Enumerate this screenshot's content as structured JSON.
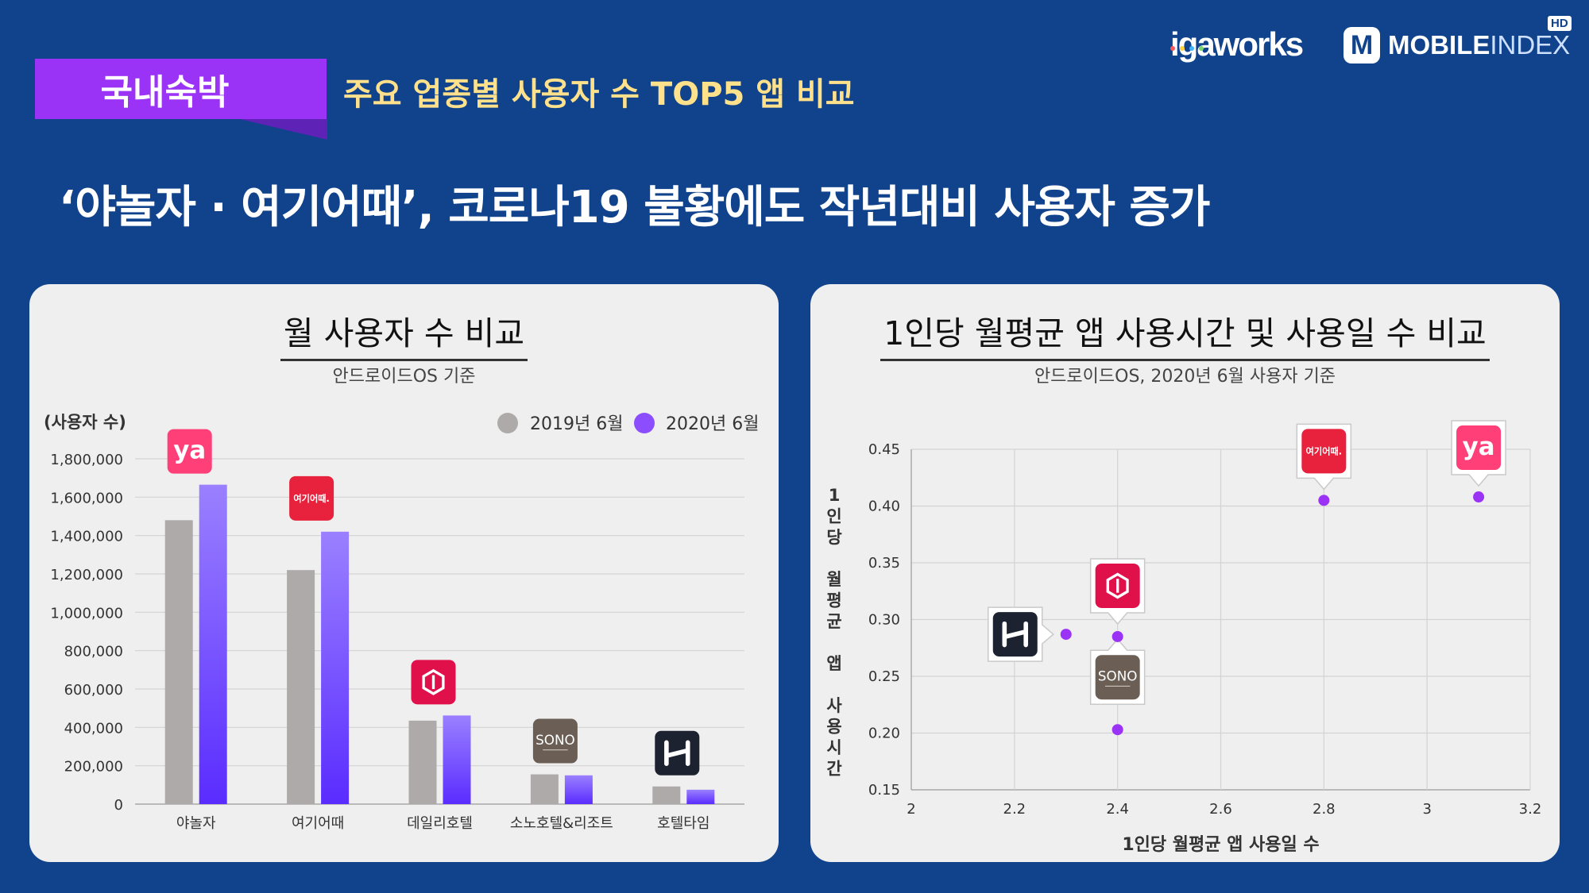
{
  "header": {
    "category": "국내숙박",
    "subtitle": "주요 업종별 사용자 수 TOP5 앱 비교",
    "headline": "‘야놀자 · 여기어때’, 코로나19 불황에도 작년대비 사용자 증가",
    "logo_igaworks": "igaworks",
    "logo_mobileindex_bold": "MOBILE",
    "logo_mobileindex_thin": "INDEX",
    "logo_m": "M",
    "hd": "HD"
  },
  "colors": {
    "background": "#10438c",
    "series_2019": "#aeaaaa",
    "series_2020": "#8c4dff",
    "point": "#9b33f6"
  },
  "icons": {
    "yanolja": {
      "text": "ya",
      "bg": "#ff3f78"
    },
    "yeogi": {
      "text": "여기어때.",
      "bg": "#e8223d"
    },
    "daily": {
      "text": "",
      "bg": "#e0104a"
    },
    "sono": {
      "text": "SONO",
      "bg": "#6b5f55"
    },
    "hoteltime": {
      "text": "",
      "bg": "#1d2230"
    }
  },
  "chart_data": [
    {
      "type": "bar",
      "title": "월 사용자 수 비교",
      "subtitle": "안드로이드OS 기준",
      "ylabel": "(사용자 수)",
      "categories": [
        "야놀자",
        "여기어때",
        "데일리호텔",
        "소노호텔&리조트",
        "호텔타임"
      ],
      "series": [
        {
          "name": "2019년 6월",
          "values": [
            1480000,
            1220000,
            435000,
            155000,
            92000
          ]
        },
        {
          "name": "2020년 6월",
          "values": [
            1665000,
            1420000,
            462000,
            150000,
            75000
          ]
        }
      ],
      "ylim": [
        0,
        1800000
      ],
      "yticks": [
        0,
        200000,
        400000,
        600000,
        800000,
        1000000,
        1200000,
        1400000,
        1600000,
        1800000
      ],
      "ytick_labels": [
        "0",
        "200,000",
        "400,000",
        "600,000",
        "800,000",
        "1,000,000",
        "1,200,000",
        "1,400,000",
        "1,600,000",
        "1,800,000"
      ],
      "legend": "top-right",
      "grid": true
    },
    {
      "type": "scatter",
      "title": "1인당 월평균 앱 사용시간 및 사용일 수 비교",
      "subtitle": "안드로이드OS, 2020년 6월 사용자 기준",
      "xlabel": "1인당 월평균 앱 사용일 수",
      "ylabel": "1인당 월평균 앱 사용시간",
      "ylabel_chars": [
        "1",
        "인",
        "당",
        "",
        "월",
        "평",
        "균",
        "",
        "앱",
        "",
        "사",
        "용",
        "시",
        "간"
      ],
      "xlim": [
        2,
        3.2
      ],
      "ylim": [
        0.15,
        0.45
      ],
      "xticks": [
        2,
        2.2,
        2.4,
        2.6,
        2.8,
        3,
        3.2
      ],
      "xtick_labels": [
        "2",
        "2.2",
        "2.4",
        "2.6",
        "2.8",
        "3",
        "3.2"
      ],
      "yticks": [
        0.15,
        0.2,
        0.25,
        0.3,
        0.35,
        0.4,
        0.45
      ],
      "ytick_labels": [
        "0.15",
        "0.20",
        "0.25",
        "0.30",
        "0.35",
        "0.40",
        "0.45"
      ],
      "points": [
        {
          "app": "yanolja",
          "x": 3.1,
          "y": 0.408
        },
        {
          "app": "yeogi",
          "x": 2.8,
          "y": 0.405
        },
        {
          "app": "daily",
          "x": 2.4,
          "y": 0.285
        },
        {
          "app": "hoteltime",
          "x": 2.3,
          "y": 0.287
        },
        {
          "app": "sono",
          "x": 2.4,
          "y": 0.203
        }
      ],
      "grid": true
    }
  ]
}
